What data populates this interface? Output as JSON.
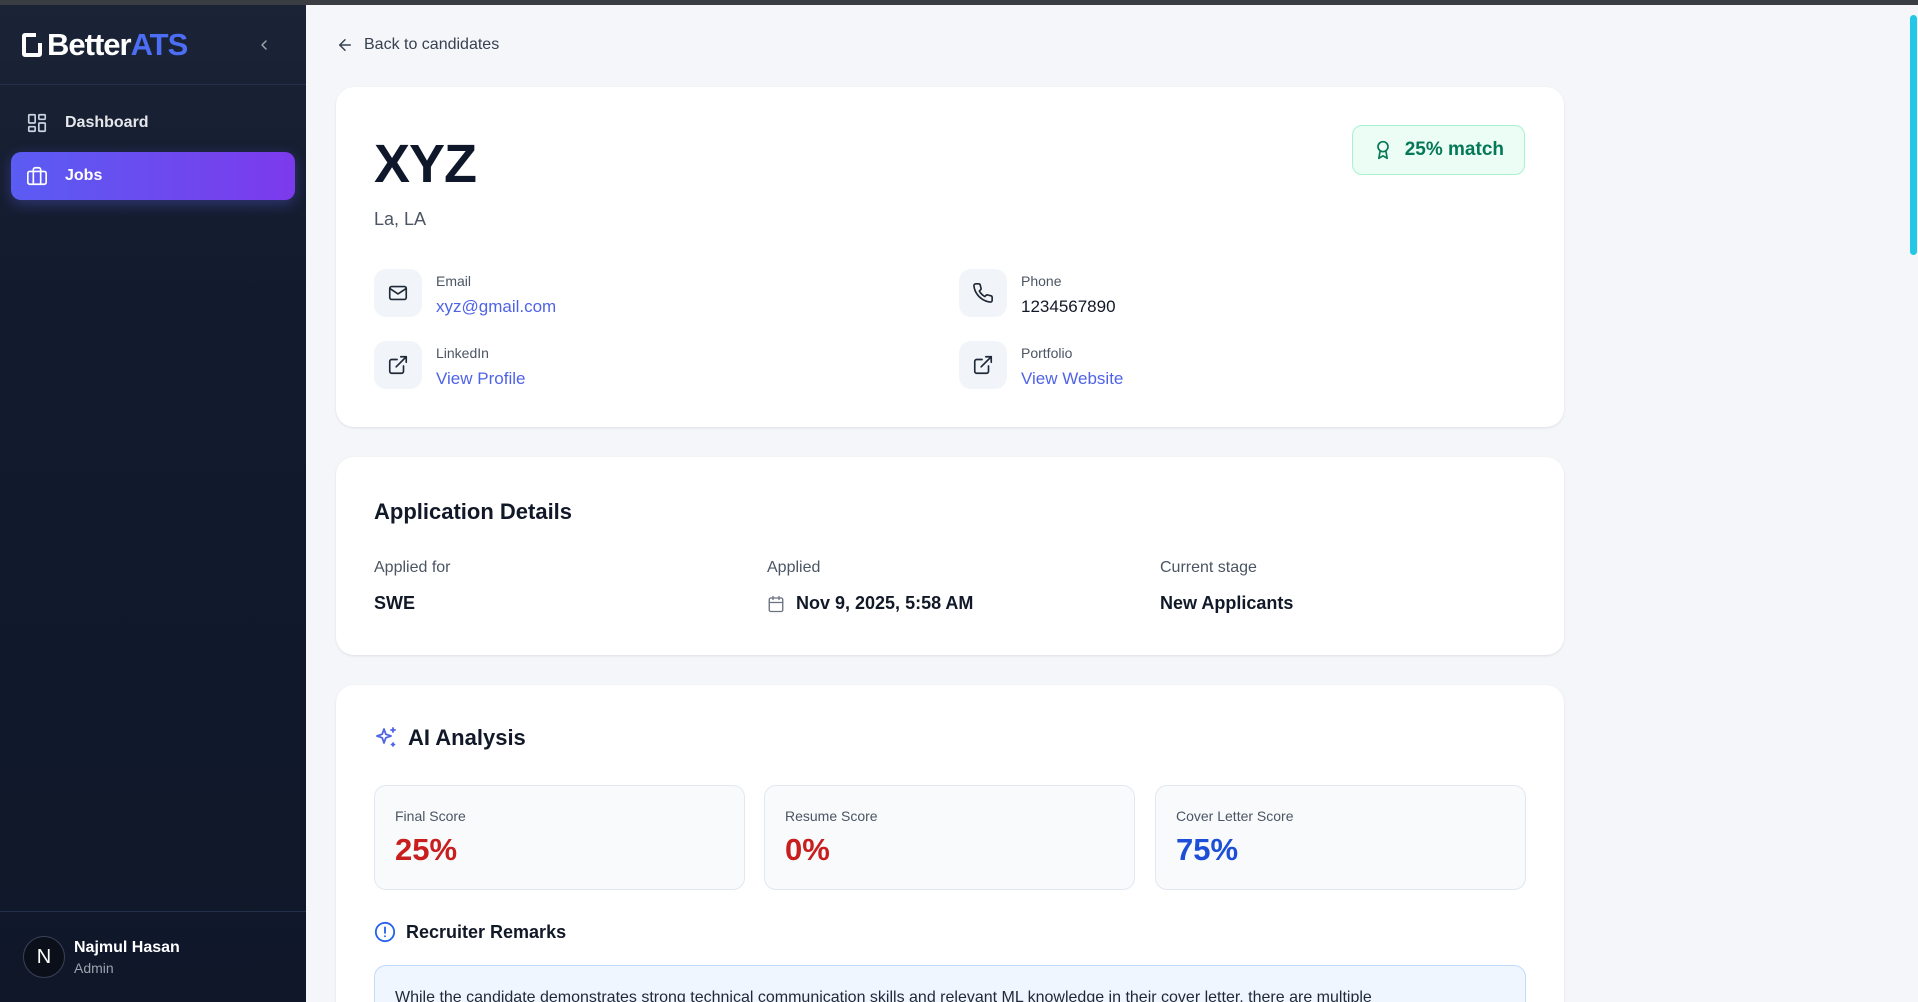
{
  "brand": {
    "part1": "Better",
    "part2": "ATS"
  },
  "sidebar": {
    "items": [
      {
        "label": "Dashboard",
        "icon": "dashboard-icon"
      },
      {
        "label": "Jobs",
        "icon": "briefcase-icon",
        "active": true
      }
    ]
  },
  "user": {
    "initial": "N",
    "name": "Najmul Hasan",
    "role": "Admin"
  },
  "back_label": "Back to candidates",
  "candidate": {
    "name": "XYZ",
    "location": "La, LA",
    "match": "25% match",
    "contacts": {
      "email": {
        "label": "Email",
        "value": "xyz@gmail.com"
      },
      "phone": {
        "label": "Phone",
        "value": "1234567890"
      },
      "linkedin": {
        "label": "LinkedIn",
        "value": "View Profile"
      },
      "portfolio": {
        "label": "Portfolio",
        "value": "View Website"
      }
    }
  },
  "application": {
    "title": "Application Details",
    "applied_for": {
      "label": "Applied for",
      "value": "SWE"
    },
    "applied": {
      "label": "Applied",
      "value": "Nov 9, 2025, 5:58 AM"
    },
    "stage": {
      "label": "Current stage",
      "value": "New Applicants"
    }
  },
  "ai": {
    "title": "AI Analysis",
    "scores": [
      {
        "label": "Final Score",
        "value": "25%"
      },
      {
        "label": "Resume Score",
        "value": "0%"
      },
      {
        "label": "Cover Letter Score",
        "value": "75%"
      }
    ],
    "remarks_title": "Recruiter Remarks",
    "remarks_text": "While the candidate demonstrates strong technical communication skills and relevant ML knowledge in their cover letter, there are multiple"
  },
  "colors": {
    "accent": "#4f63e7",
    "active_nav_start": "#5a5cf2",
    "active_nav_end": "#7c3aed",
    "match_green": "#047857",
    "score_red": "#c81e1e",
    "score_blue": "#1d4ed8"
  }
}
